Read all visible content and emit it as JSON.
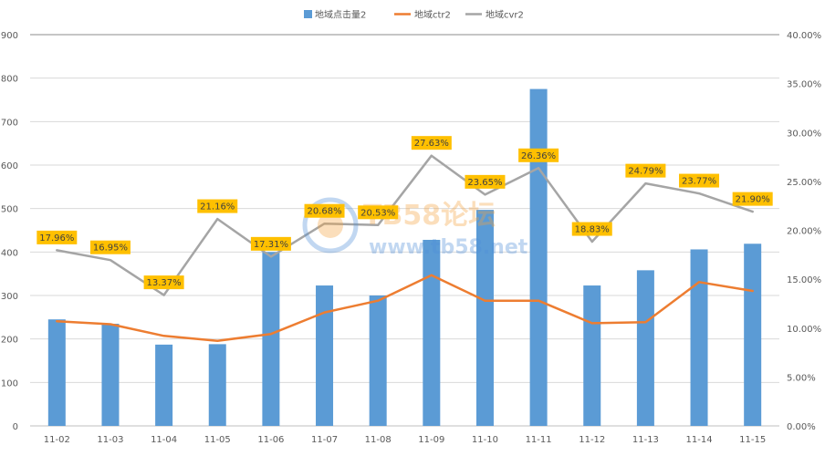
{
  "chart_data": {
    "type": "bar",
    "categories": [
      "11-02",
      "11-03",
      "11-04",
      "11-05",
      "11-06",
      "11-07",
      "11-08",
      "11-09",
      "11-10",
      "11-11",
      "11-12",
      "11-13",
      "11-14",
      "11-15"
    ],
    "series": [
      {
        "name": "地域点击量2",
        "type": "bar",
        "axis": "left",
        "color": "#5b9bd5",
        "values": [
          245,
          235,
          187,
          188,
          400,
          323,
          300,
          428,
          497,
          775,
          323,
          358,
          406,
          419
        ]
      },
      {
        "name": "地域ctr2",
        "type": "line",
        "axis": "right",
        "color": "#ed7d31",
        "values": [
          10.7,
          10.4,
          9.2,
          8.7,
          9.4,
          11.6,
          12.8,
          15.4,
          12.8,
          12.8,
          10.5,
          10.6,
          14.7,
          13.8
        ]
      },
      {
        "name": "地域cvr2",
        "type": "line",
        "axis": "right",
        "color": "#a5a5a5",
        "values": [
          17.96,
          16.95,
          13.37,
          21.16,
          17.31,
          20.68,
          20.53,
          27.63,
          23.65,
          26.36,
          18.83,
          24.79,
          23.77,
          21.9
        ]
      }
    ],
    "data_labels": [
      "17.96%",
      "16.95%",
      "13.37%",
      "21.16%",
      "17.31%",
      "20.68%",
      "20.53%",
      "27.63%",
      "23.65%",
      "26.36%",
      "18.83%",
      "24.79%",
      "23.77%",
      "21.90%"
    ],
    "left_axis": {
      "ylim": [
        0,
        900
      ],
      "ticks": [
        "0",
        "100",
        "200",
        "300",
        "400",
        "500",
        "600",
        "700",
        "800",
        "900"
      ]
    },
    "right_axis": {
      "ylim": [
        0,
        40
      ],
      "ticks": [
        "0.00%",
        "5.00%",
        "10.00%",
        "15.00%",
        "20.00%",
        "25.00%",
        "30.00%",
        "35.00%",
        "40.00%"
      ]
    },
    "legend_position": "top-center",
    "grid": true,
    "title": "",
    "xlabel": "",
    "ylabel": ""
  },
  "watermark": {
    "brand": "TB58论坛",
    "url": "www.tb58.net"
  }
}
